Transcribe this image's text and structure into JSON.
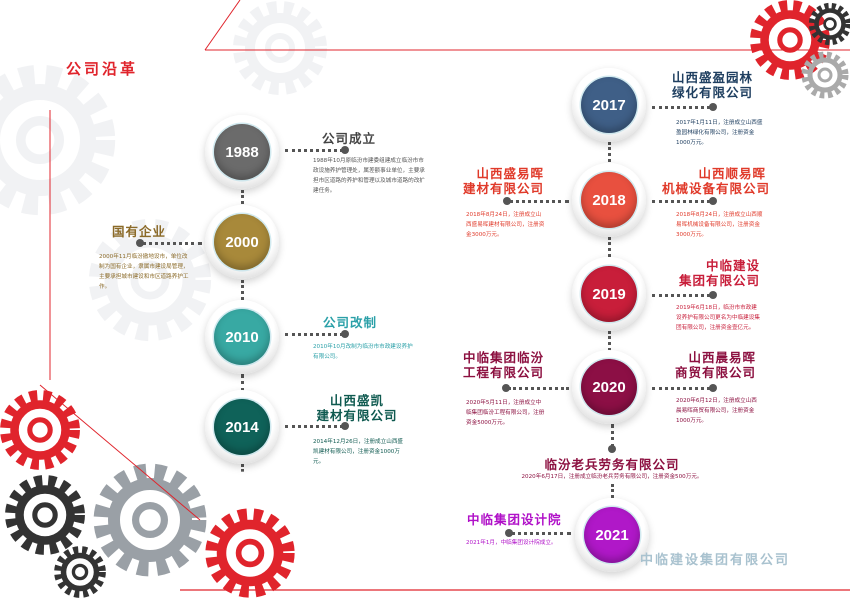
{
  "header": {
    "title": "公司沿革",
    "accent": "#e0242c"
  },
  "footer": {
    "watermark": "中临建设集团有限公司"
  },
  "timeline": {
    "e1988": {
      "year": "1988",
      "title": "公司成立",
      "desc": "1988年10月原临汾市建委组建成立临汾市市政设施养护管理处，属差额事业单位，主要承担市区道路的养护和管理以及城市道路的改扩建任务。",
      "color": "#6b6b6b",
      "text_color": "#444444"
    },
    "e2000": {
      "year": "2000",
      "title": "国有企业",
      "desc": "2000年11月临汾撤地设市，单位改制为国有企业，隶属市建设局管理，主要承担城市建设和市区道路养护工作。",
      "color": "#a8893a",
      "text_color": "#8b6a28"
    },
    "e2010": {
      "year": "2010",
      "title": "公司改制",
      "desc": "2010年10月改制为临汾市市政建设养护有限公司。",
      "color": "#38a9a3",
      "text_color": "#2aa0a8"
    },
    "e2014": {
      "year": "2014",
      "title": "山西盛凯建材有限公司",
      "title_l1": "山西盛凯",
      "title_l2": "建材有限公司",
      "desc": "2014年12月26日，注册成立山西盛凯建材有限公司，注册资金1000万元。",
      "color": "#0f6259",
      "text_color": "#0f5a50"
    },
    "e2017": {
      "year": "2017",
      "title_l1": "山西盛盈园林",
      "title_l2": "绿化有限公司",
      "desc": "2017年1月11日，注册成立山西盛盈园林绿化有限公司，注册资金1000万元。",
      "color": "#3f5f87",
      "text_color": "#1f3f60"
    },
    "e2018": {
      "year": "2018",
      "left_title_l1": "山西盛易晖",
      "left_title_l2": "建材有限公司",
      "left_desc": "2018年8月24日，注册成立山西盛易晖建材有限公司，注册资金3000万元。",
      "right_title_l1": "山西顺易晖",
      "right_title_l2": "机械设备有限公司",
      "right_desc": "2018年8月24日，注册成立山西顺易晖机械设备有限公司，注册资金3000万元。",
      "color": "#e8503f",
      "text_color": "#e03a2a"
    },
    "e2019": {
      "year": "2019",
      "title_l1": "中临建设",
      "title_l2": "集团有限公司",
      "desc": "2019年6月18日，临汾市市政建设养护有限公司更名为中临建设集团有限公司，注册资金壹亿元。",
      "color": "#c81e3a",
      "text_color": "#c81e3a"
    },
    "e2020": {
      "year": "2020",
      "left_title_l1": "中临集团临汾",
      "left_title_l2": "工程有限公司",
      "left_desc": "2020年5月11日，注册成立中临集团临汾工程有限公司，注册资金5000万元。",
      "right_title_l1": "山西晨易晖",
      "right_title_l2": "商贸有限公司",
      "right_desc": "2020年6月12日，注册成立山西晨易晖商贸有限公司，注册资金1000万元。",
      "color": "#8c0f45",
      "text_color": "#8c1040"
    },
    "laobing": {
      "title": "临汾老兵劳务有限公司",
      "desc": "2020年6月17日，注册成立临汾老兵劳务有限公司，注册资金500万元。",
      "text_color": "#8c1040"
    },
    "e2021": {
      "year": "2021",
      "title": "中临集团设计院",
      "desc": "2021年1月，中临集团设计院成立。",
      "color": "#b018c8",
      "text_color": "#b010c8"
    }
  }
}
